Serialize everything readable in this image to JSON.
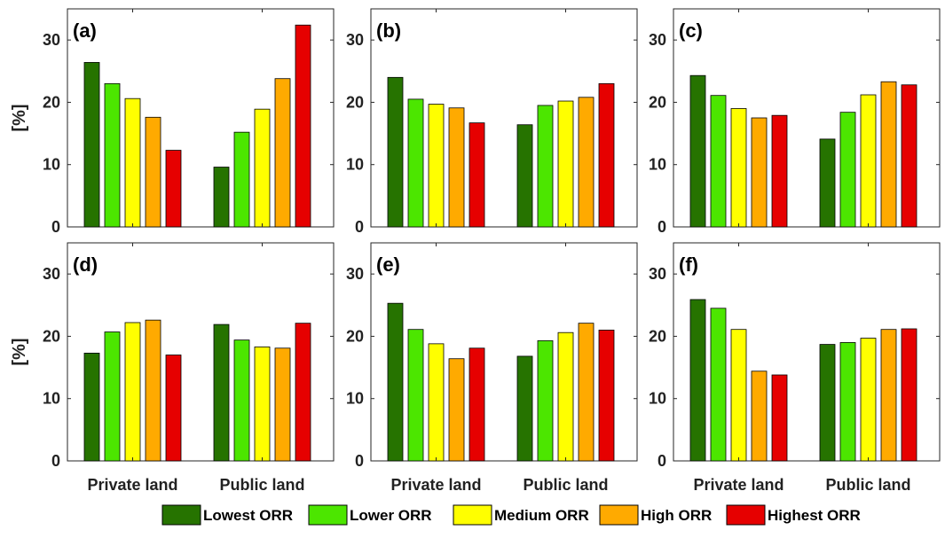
{
  "chart_data": {
    "type": "bar",
    "ylabel": "[%]",
    "ylim": [
      0,
      35
    ],
    "yticks": [
      0,
      10,
      20,
      30
    ],
    "categories": [
      "Private land",
      "Public land"
    ],
    "legend": {
      "placement": "bottom",
      "entries": [
        {
          "name": "Lowest ORR",
          "color": "#267300"
        },
        {
          "name": "Lower ORR",
          "color": "#4CE600"
        },
        {
          "name": "Medium ORR",
          "color": "#FFFF00"
        },
        {
          "name": "High ORR",
          "color": "#FFAA00"
        },
        {
          "name": "Highest ORR",
          "color": "#E60000"
        }
      ]
    },
    "panels": [
      {
        "label": "(a)",
        "series": [
          [
            26.4,
            9.6
          ],
          [
            23.0,
            15.2
          ],
          [
            20.6,
            18.9
          ],
          [
            17.6,
            23.8
          ],
          [
            12.3,
            32.4
          ]
        ]
      },
      {
        "label": "(b)",
        "series": [
          [
            24.0,
            16.4
          ],
          [
            20.5,
            19.5
          ],
          [
            19.7,
            20.2
          ],
          [
            19.1,
            20.8
          ],
          [
            16.7,
            23.0
          ]
        ]
      },
      {
        "label": "(c)",
        "series": [
          [
            24.3,
            14.1
          ],
          [
            21.1,
            18.4
          ],
          [
            19.0,
            21.2
          ],
          [
            17.5,
            23.3
          ],
          [
            17.9,
            22.8
          ]
        ]
      },
      {
        "label": "(d)",
        "series": [
          [
            17.3,
            21.9
          ],
          [
            20.7,
            19.4
          ],
          [
            22.2,
            18.3
          ],
          [
            22.6,
            18.1
          ],
          [
            17.0,
            22.1
          ]
        ]
      },
      {
        "label": "(e)",
        "series": [
          [
            25.3,
            16.8
          ],
          [
            21.1,
            19.3
          ],
          [
            18.8,
            20.6
          ],
          [
            16.4,
            22.1
          ],
          [
            18.1,
            21.0
          ]
        ]
      },
      {
        "label": "(f)",
        "series": [
          [
            25.9,
            18.7
          ],
          [
            24.5,
            19.0
          ],
          [
            21.1,
            19.7
          ],
          [
            14.4,
            21.1
          ],
          [
            13.8,
            21.2
          ]
        ]
      }
    ]
  }
}
